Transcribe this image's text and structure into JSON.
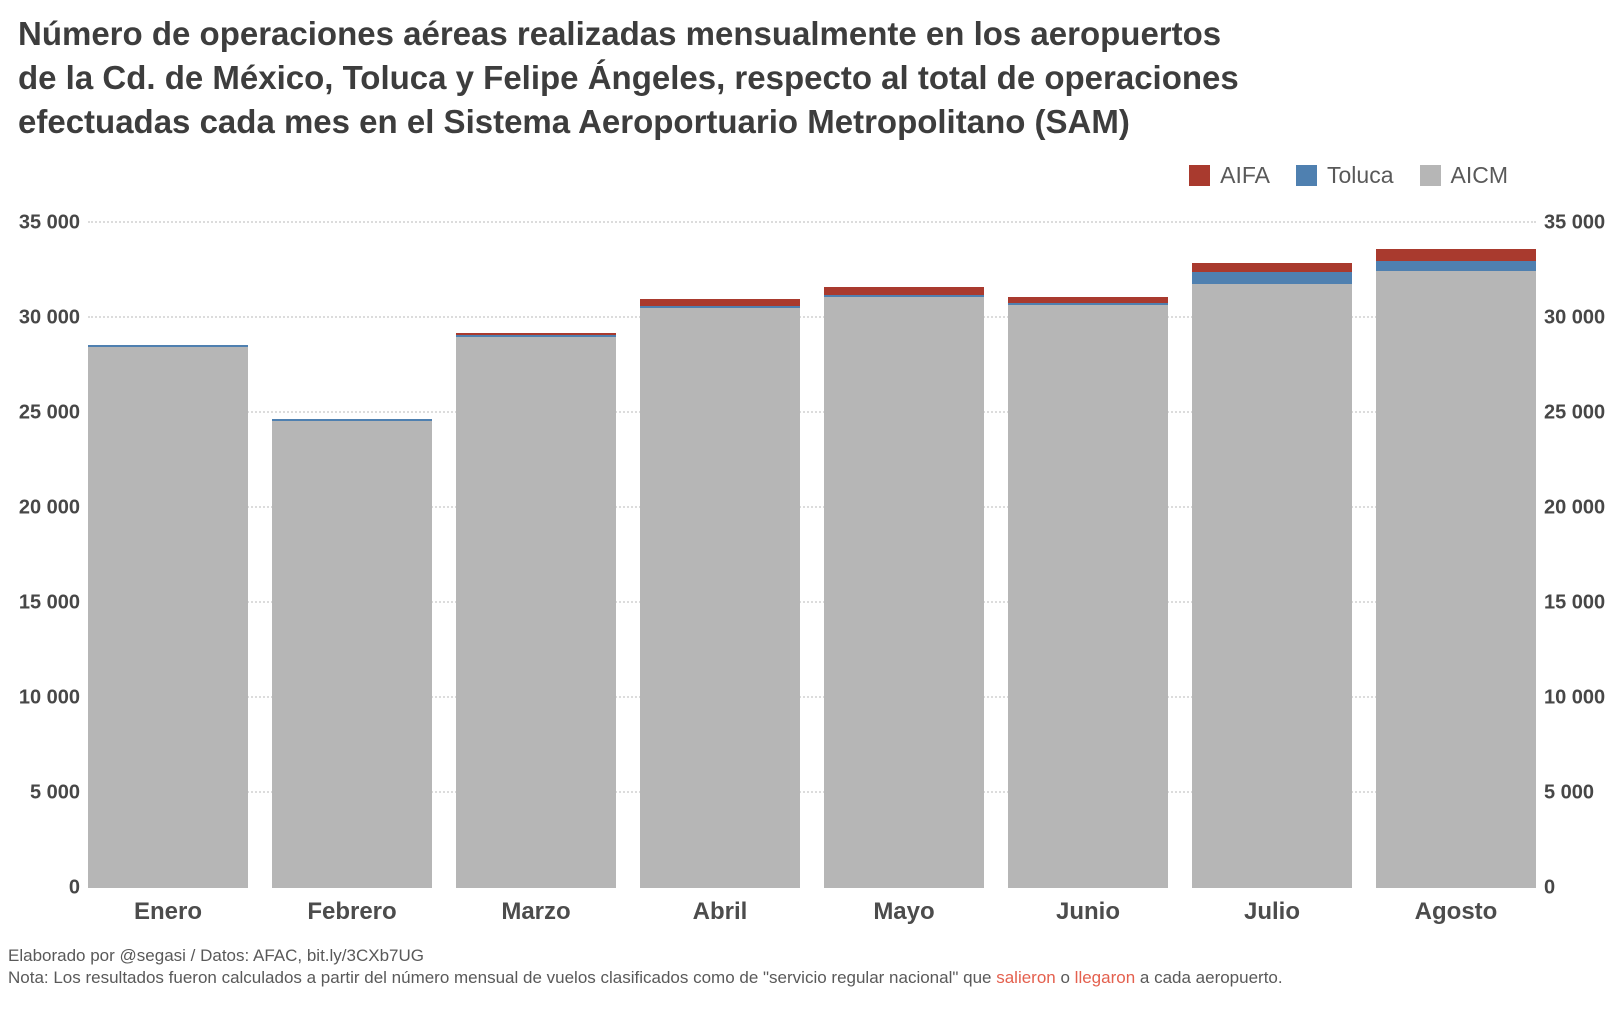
{
  "title_lines": [
    "Número de operaciones aéreas realizadas mensualmente en los aeropuertos",
    "de la Cd. de México, Toluca y Felipe Ángeles, respecto al total de operaciones",
    "efectuadas cada mes en el Sistema Aeroportuario Metropolitano (SAM)"
  ],
  "legend": [
    {
      "label": "AIFA",
      "color": "#a93a2e"
    },
    {
      "label": "Toluca",
      "color": "#4f80b0"
    },
    {
      "label": "AICM",
      "color": "#b6b6b6"
    }
  ],
  "chart_data": {
    "type": "bar",
    "stacked": true,
    "categories": [
      "Enero",
      "Febrero",
      "Marzo",
      "Abril",
      "Mayo",
      "Junio",
      "Julio",
      "Agosto"
    ],
    "series": [
      {
        "name": "AICM",
        "color": "#b6b6b6",
        "values": [
          28480,
          24580,
          29000,
          30520,
          31100,
          30700,
          31800,
          32500
        ]
      },
      {
        "name": "Toluca",
        "color": "#4f80b0",
        "values": [
          100,
          100,
          100,
          110,
          110,
          110,
          620,
          520
        ]
      },
      {
        "name": "AIFA",
        "color": "#a93a2e",
        "values": [
          0,
          0,
          110,
          370,
          420,
          290,
          480,
          630
        ]
      }
    ],
    "totals": [
      28580,
      24680,
      29210,
      31000,
      31630,
      31100,
      32900,
      33650
    ],
    "ylim": [
      0,
      35000
    ],
    "ytick_step": 5000,
    "ytick_labels": [
      "0",
      "5 000",
      "10 000",
      "15 000",
      "20 000",
      "25 000",
      "30 000",
      "35 000"
    ],
    "grid": "horizontal-dotted",
    "legend_position": "top-right",
    "y_axis_sides": "both",
    "title": "Número de operaciones aéreas realizadas mensualmente en los aeropuertos de la Cd. de México, Toluca y Felipe Ángeles, respecto al total de operaciones efectuadas cada mes en el Sistema Aeroportuario Metropolitano (SAM)"
  },
  "footer": {
    "line1": "Elaborado por @segasi / Datos: AFAC, bit.ly/3CXb7UG",
    "note_parts": [
      {
        "text": "Nota: Los resultados fueron calculados a partir del número mensual de vuelos clasificados como de \"servicio regular nacional\" que ",
        "highlight": false
      },
      {
        "text": "salieron",
        "highlight": true
      },
      {
        "text": " o ",
        "highlight": false
      },
      {
        "text": "llegaron",
        "highlight": true
      },
      {
        "text": " a cada aeropuerto.",
        "highlight": false
      }
    ],
    "highlight_color": "#e4604e"
  }
}
